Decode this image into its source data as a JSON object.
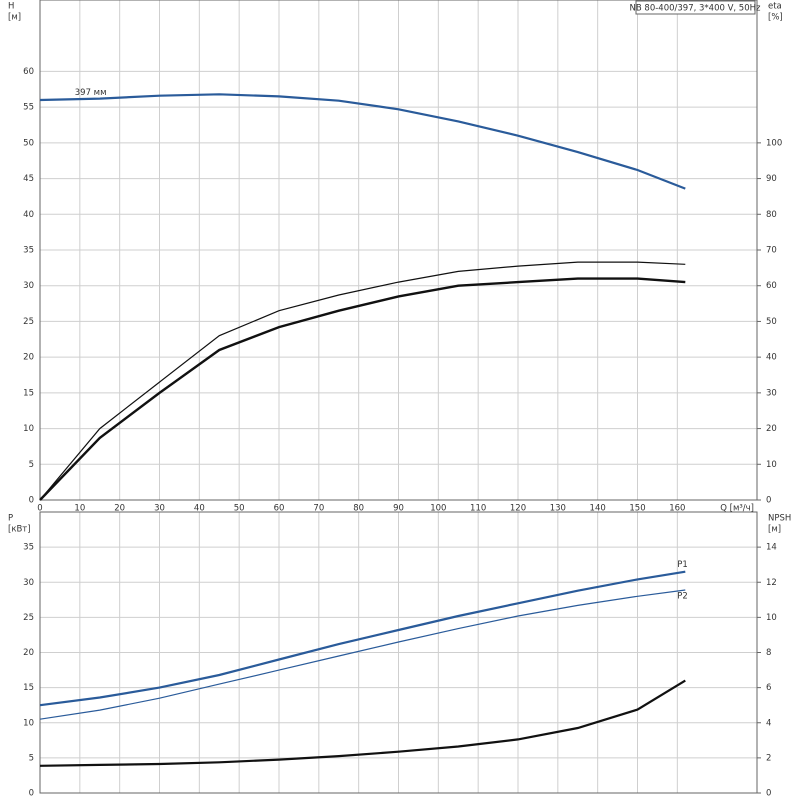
{
  "chart_data": [
    {
      "type": "line",
      "title": "NB 80-400/397, 3*400 V, 50Hz",
      "ylabel": "H",
      "yunit": "[м]",
      "y2label": "eta",
      "y2unit": "[%]",
      "xlabel": "Q [м³/ч]",
      "x": [
        0,
        15,
        30,
        45,
        60,
        75,
        90,
        105,
        120,
        135,
        150,
        162
      ],
      "xlim": [
        0,
        180
      ],
      "xticks": [
        0,
        10,
        20,
        30,
        40,
        50,
        60,
        70,
        80,
        90,
        100,
        110,
        120,
        130,
        140,
        150,
        160
      ],
      "ylim": [
        0,
        70
      ],
      "yticks": [
        0,
        5,
        10,
        15,
        20,
        25,
        30,
        35,
        40,
        45,
        50,
        55,
        60
      ],
      "y2lim": [
        0,
        140
      ],
      "y2ticks": [
        0,
        10,
        20,
        30,
        40,
        50,
        60,
        70,
        80,
        90,
        100
      ],
      "grid": true,
      "series": [
        {
          "name": "397 мм",
          "color": "#2a5b9a",
          "line_width": 2.2,
          "values": [
            56,
            56.2,
            56.6,
            56.8,
            56.5,
            55.9,
            54.7,
            53.0,
            51.0,
            48.7,
            46.2,
            43.6
          ]
        },
        {
          "color": "#111111",
          "line_width": 1.2,
          "axis": "y2",
          "values": [
            0,
            20,
            33,
            46,
            53,
            57.4,
            61,
            64,
            65.5,
            66.6,
            66.6,
            66
          ]
        },
        {
          "color": "#111111",
          "line_width": 2.4,
          "axis": "y2",
          "values": [
            0,
            17.4,
            30,
            42,
            48.4,
            53,
            57,
            60,
            61,
            62,
            62,
            61
          ]
        }
      ]
    },
    {
      "type": "line",
      "ylabel": "P",
      "yunit": "[кВт]",
      "y2label": "NPSH",
      "y2unit": "[м]",
      "x": [
        0,
        15,
        30,
        45,
        60,
        75,
        90,
        105,
        120,
        135,
        150,
        162
      ],
      "xlim": [
        0,
        180
      ],
      "ylim": [
        0,
        40
      ],
      "yticks": [
        0,
        5,
        10,
        15,
        20,
        25,
        30,
        35
      ],
      "y2lim": [
        0,
        16
      ],
      "y2ticks": [
        0,
        2,
        4,
        6,
        8,
        10,
        12,
        14
      ],
      "grid": true,
      "series": [
        {
          "name": "P1",
          "color": "#2a5b9a",
          "line_width": 2.2,
          "values": [
            12.5,
            13.6,
            15,
            16.8,
            19,
            21.2,
            23.2,
            25.2,
            27,
            28.8,
            30.4,
            31.5
          ]
        },
        {
          "name": "P2",
          "color": "#2a5b9a",
          "line_width": 1.2,
          "values": [
            10.5,
            11.8,
            13.5,
            15.5,
            17.5,
            19.5,
            21.5,
            23.4,
            25.2,
            26.7,
            28,
            28.9
          ]
        },
        {
          "color": "#111111",
          "line_width": 2.2,
          "axis": "y2",
          "values": [
            1.55,
            1.6,
            1.65,
            1.75,
            1.9,
            2.1,
            2.35,
            2.65,
            3.05,
            3.7,
            4.75,
            6.4
          ]
        }
      ]
    }
  ]
}
